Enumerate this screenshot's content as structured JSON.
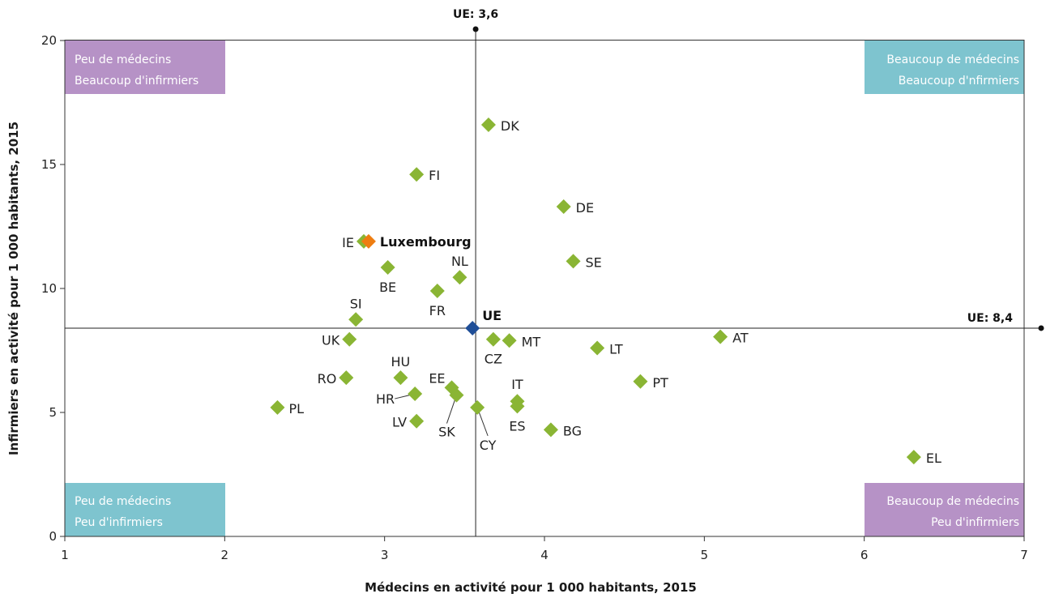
{
  "chart_data": {
    "type": "scatter",
    "xlabel": "Médecins en activité pour 1 000 habitants, 2015",
    "ylabel": "Infirmiers en activité pour 1 000 habitants, 2015",
    "xlim": [
      1,
      7
    ],
    "ylim": [
      0,
      20
    ],
    "xticks": [
      1,
      2,
      3,
      4,
      5,
      6,
      7
    ],
    "yticks": [
      0,
      5,
      10,
      15,
      20
    ],
    "grid": false,
    "reference_lines": {
      "x": {
        "value": 3.6,
        "label": "UE: 3,6"
      },
      "y": {
        "value": 8.4,
        "label": "UE: 8,4"
      }
    },
    "quadrants": [
      {
        "position": "top-left",
        "lines": [
          "Peu de médecins",
          "Beaucoup d'infirmiers"
        ],
        "color": "#b692c6"
      },
      {
        "position": "top-right",
        "lines": [
          "Beaucoup de médecins",
          "Beaucoup d'nfirmiers"
        ],
        "color": "#7ec4cf"
      },
      {
        "position": "bottom-left",
        "lines": [
          "Peu de médecins",
          "Peu d'infirmiers"
        ],
        "color": "#7ec4cf"
      },
      {
        "position": "bottom-right",
        "lines": [
          "Beaucoup de médecins",
          "Peu d'infirmiers"
        ],
        "color": "#b692c6"
      }
    ],
    "colors": {
      "country": "#8ab534",
      "highlight": "#ee7d11",
      "eu": "#1f4e97"
    },
    "points": [
      {
        "label": "DK",
        "x": 3.65,
        "y": 16.6,
        "lx": 15,
        "ly": 7,
        "anchor": "start"
      },
      {
        "label": "FI",
        "x": 3.2,
        "y": 14.6,
        "lx": 15,
        "ly": 7,
        "anchor": "start"
      },
      {
        "label": "DE",
        "x": 4.12,
        "y": 13.3,
        "lx": 15,
        "ly": 7,
        "anchor": "start"
      },
      {
        "label": "IE",
        "x": 2.87,
        "y": 11.9,
        "lx": -12,
        "ly": 7,
        "anchor": "end"
      },
      {
        "label": "SE",
        "x": 4.18,
        "y": 11.1,
        "lx": 15,
        "ly": 7,
        "anchor": "start"
      },
      {
        "label": "BE",
        "x": 3.02,
        "y": 10.85,
        "lx": 0,
        "ly": 30,
        "anchor": "middle"
      },
      {
        "label": "NL",
        "x": 3.47,
        "y": 10.45,
        "lx": 0,
        "ly": -14,
        "anchor": "middle"
      },
      {
        "label": "FR",
        "x": 3.33,
        "y": 9.9,
        "lx": 0,
        "ly": 30,
        "anchor": "middle"
      },
      {
        "label": "SI",
        "x": 2.82,
        "y": 8.75,
        "lx": 0,
        "ly": -14,
        "anchor": "middle"
      },
      {
        "label": "UK",
        "x": 2.78,
        "y": 7.95,
        "lx": -12,
        "ly": 7,
        "anchor": "end"
      },
      {
        "label": "CZ",
        "x": 3.68,
        "y": 7.95,
        "lx": 0,
        "ly": 30,
        "anchor": "middle"
      },
      {
        "label": "MT",
        "x": 3.78,
        "y": 7.9,
        "lx": 15,
        "ly": 7,
        "anchor": "start"
      },
      {
        "label": "LT",
        "x": 4.33,
        "y": 7.6,
        "lx": 15,
        "ly": 7,
        "anchor": "start"
      },
      {
        "label": "AT",
        "x": 5.1,
        "y": 8.05,
        "lx": 15,
        "ly": 7,
        "anchor": "start"
      },
      {
        "label": "HU",
        "x": 3.1,
        "y": 6.4,
        "lx": 0,
        "ly": -14,
        "anchor": "middle"
      },
      {
        "label": "RO",
        "x": 2.76,
        "y": 6.4,
        "lx": -12,
        "ly": 7,
        "anchor": "end"
      },
      {
        "label": "PT",
        "x": 4.6,
        "y": 6.25,
        "lx": 15,
        "ly": 7,
        "anchor": "start"
      },
      {
        "label": "EE",
        "x": 3.42,
        "y": 6.0,
        "lx": -8,
        "ly": -6,
        "anchor": "end"
      },
      {
        "label": "SK",
        "x": 3.45,
        "y": 5.7,
        "lx": -12,
        "ly": 51,
        "anchor": "middle",
        "leader": [
          -12,
          35
        ]
      },
      {
        "label": "HR",
        "x": 3.19,
        "y": 5.75,
        "lx": -25,
        "ly": 12,
        "anchor": "end",
        "leader": [
          -25,
          6
        ]
      },
      {
        "label": "IT",
        "x": 3.83,
        "y": 5.45,
        "lx": 0,
        "ly": -15,
        "anchor": "middle"
      },
      {
        "label": "ES",
        "x": 3.83,
        "y": 5.25,
        "lx": 0,
        "ly": 30,
        "anchor": "middle"
      },
      {
        "label": "PL",
        "x": 2.33,
        "y": 5.2,
        "lx": 14,
        "ly": 7,
        "anchor": "start"
      },
      {
        "label": "CY",
        "x": 3.58,
        "y": 5.2,
        "lx": 13,
        "ly": 52,
        "anchor": "middle",
        "leader": [
          13,
          35
        ]
      },
      {
        "label": "LV",
        "x": 3.2,
        "y": 4.65,
        "lx": -12,
        "ly": 7,
        "anchor": "end"
      },
      {
        "label": "BG",
        "x": 4.04,
        "y": 4.3,
        "lx": 15,
        "ly": 7,
        "anchor": "start"
      },
      {
        "label": "EL",
        "x": 6.31,
        "y": 3.2,
        "lx": 15,
        "ly": 7,
        "anchor": "start"
      }
    ],
    "highlight_point": {
      "label": "Luxembourg",
      "x": 2.9,
      "y": 11.9,
      "lx": 14,
      "ly": 6,
      "anchor": "start"
    },
    "eu_point": {
      "label": "UE",
      "x": 3.55,
      "y": 8.4,
      "lx": 12,
      "ly": -10,
      "anchor": "start"
    }
  }
}
